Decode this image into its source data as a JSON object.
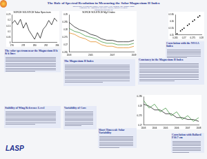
{
  "header": {
    "title": "The Role of Spectral Resolution in Measuring the Solar Magnesium II Index",
    "authors": "Martin Snow, William McClintock, Jerald Harder, Gary Rottman, and Thomas Woods",
    "affiliation": "Laboratory for Atmospheric and Space Physics, Boulder CO 80303",
    "email": "Snow@lasp.colorado.edu"
  },
  "sections": [
    {
      "heading": "The solar spectrum near the Magnesium II h & k lines"
    },
    {
      "heading": "Stability of Wing Reference Level"
    },
    {
      "heading": "The Magnesium II Index"
    },
    {
      "heading": "Variability of Core"
    },
    {
      "heading": "Short Timescale Solar Variability"
    },
    {
      "heading": "Correlation with the NOAA Index"
    },
    {
      "heading": "Constancy in the Magnesium II Index"
    },
    {
      "heading": "Correlation with Ballard F10.7 cm"
    }
  ],
  "logo": "LASP",
  "chart_data": [
    {
      "type": "line",
      "title": "SORCE SOLSTICE Solar Spectrum",
      "x": [
        276,
        276.5,
        277,
        277.5,
        278,
        278.5,
        279,
        279.5,
        280,
        280.5,
        281,
        281.5,
        282,
        282.5,
        283,
        283.5,
        284
      ],
      "series": [
        {
          "color": "#000000",
          "values": [
            0.17,
            0.2,
            0.16,
            0.21,
            0.13,
            0.18,
            0.11,
            0.07,
            0.03,
            0.09,
            0.04,
            0.12,
            0.15,
            0.2,
            0.16,
            0.22,
            0.19
          ]
        }
      ],
      "xlim": [
        276,
        284
      ],
      "xticks": [
        276,
        278,
        280,
        282,
        284
      ],
      "ylim": [
        0,
        0.25
      ],
      "yticks": [
        0,
        0.05,
        0.1,
        0.15,
        0.2,
        0.25
      ],
      "grid": false
    },
    {
      "type": "line",
      "title": "SORCE SOLSTICE Mg II Index",
      "x": [
        2003,
        2003.5,
        2004,
        2004.5,
        2005,
        2005.5,
        2006,
        2006.5,
        2007,
        2007.5,
        2008,
        2008.5,
        2009
      ],
      "series": [
        {
          "color": "#000000",
          "values": [
            0.285,
            0.282,
            0.28,
            0.279,
            0.277,
            0.276,
            0.274,
            0.273,
            0.273,
            0.272,
            0.272,
            0.272,
            0.273
          ]
        },
        {
          "color": "#2e8b2e",
          "values": [
            0.281,
            0.279,
            0.278,
            0.276,
            0.275,
            0.274,
            0.272,
            0.271,
            0.271,
            0.27,
            0.27,
            0.27,
            0.271
          ]
        },
        {
          "color": "#e07b00",
          "values": [
            0.278,
            0.277,
            0.275,
            0.274,
            0.272,
            0.272,
            0.27,
            0.269,
            0.269,
            0.268,
            0.268,
            0.268,
            0.269
          ]
        }
      ],
      "xlim": [
        2003,
        2009
      ],
      "xticks": [
        2003,
        2005,
        2007,
        2009
      ],
      "ylim": [
        0.265,
        0.29
      ],
      "yticks": [
        0.265,
        0.27,
        0.275,
        0.28,
        0.285,
        0.29
      ],
      "grid": false
    },
    {
      "type": "scatter",
      "x": [
        0.266,
        0.268,
        0.269,
        0.27,
        0.272,
        0.273,
        0.275,
        0.276,
        0.278,
        0.279
      ],
      "series": [
        {
          "color": "#000000",
          "values": [
            0.151,
            0.153,
            0.154,
            0.155,
            0.157,
            0.158,
            0.16,
            0.161,
            0.163,
            0.164
          ]
        }
      ],
      "xlim": [
        0.265,
        0.28
      ],
      "xticks": [
        0.265,
        0.27,
        0.275,
        0.28
      ],
      "ylim": [
        0.15,
        0.165
      ],
      "yticks": [
        0.15,
        0.155,
        0.16,
        0.165
      ],
      "grid": false
    },
    {
      "type": "line",
      "x": [
        2003,
        2003.5,
        2004,
        2004.5,
        2005,
        2005.5,
        2006,
        2006.5,
        2007,
        2007.5,
        2008
      ],
      "series": [
        {
          "color": "#2e8b2e",
          "values": [
            0.283,
            0.279,
            0.281,
            0.277,
            0.279,
            0.275,
            0.277,
            0.273,
            0.275,
            0.272,
            0.274
          ]
        },
        {
          "color": "#000000",
          "values": [
            0.281,
            0.28,
            0.278,
            0.278,
            0.276,
            0.276,
            0.274,
            0.274,
            0.273,
            0.273,
            0.272
          ]
        }
      ],
      "xlim": [
        2003,
        2008
      ],
      "xticks": [
        2003,
        2004,
        2005,
        2006,
        2007,
        2008
      ],
      "ylim": [
        0.27,
        0.285
      ],
      "yticks": [
        0.27,
        0.275,
        0.28,
        0.285
      ],
      "grid": false
    }
  ]
}
